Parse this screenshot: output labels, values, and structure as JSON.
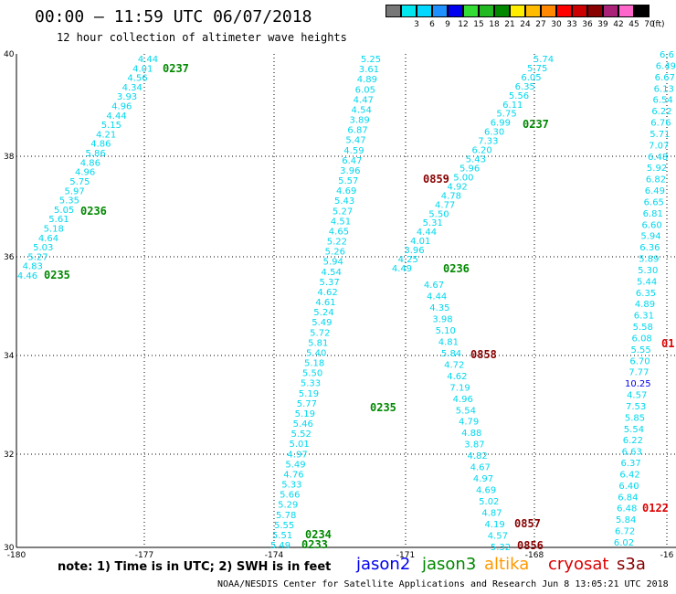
{
  "title": "00:00 — 11:59 UTC 06/07/2018",
  "subtitle": "12 hour collection of altimeter wave heights",
  "legend": {
    "unit": "(ft)",
    "entries": [
      {
        "label": "",
        "color": "#777777"
      },
      {
        "label": "3",
        "color": "#00e5ee"
      },
      {
        "label": "6",
        "color": "#00d8ff"
      },
      {
        "label": "9",
        "color": "#1e90ff"
      },
      {
        "label": "12",
        "color": "#0000ee"
      },
      {
        "label": "15",
        "color": "#33dd33"
      },
      {
        "label": "18",
        "color": "#22b822"
      },
      {
        "label": "21",
        "color": "#008800"
      },
      {
        "label": "24",
        "color": "#ffee00"
      },
      {
        "label": "27",
        "color": "#ffbb00"
      },
      {
        "label": "30",
        "color": "#ff8800"
      },
      {
        "label": "33",
        "color": "#ff0000"
      },
      {
        "label": "36",
        "color": "#cc0000"
      },
      {
        "label": "39",
        "color": "#880000"
      },
      {
        "label": "42",
        "color": "#aa2277"
      },
      {
        "label": "45",
        "color": "#ff66cc"
      },
      {
        "label": "70",
        "color": "#000000"
      }
    ]
  },
  "axes": {
    "lat_labels": [
      "40",
      "38",
      "36",
      "34",
      "32",
      "30"
    ],
    "lon_labels": [
      "-180",
      "-177",
      "-174",
      "-171",
      "-168",
      "-16"
    ]
  },
  "colors": {
    "value": "#00d8ee",
    "value_blue": "#0000ee",
    "jason3": "#008800",
    "jason2": "#0000ee",
    "altika": "#ff9900",
    "cryosat": "#dd0000",
    "s3a": "#880000"
  },
  "tracks": [
    {
      "id": "track-a",
      "values": [
        "4.44",
        "4.01",
        "4.56",
        "4.34",
        "3.93",
        "4.96",
        "4.44",
        "5.15",
        "4.21",
        "4.86",
        "5.86",
        "4.86",
        "4.96",
        "5.75",
        "5.97",
        "5.35",
        "5.05",
        "5.61",
        "5.18",
        "4.64",
        "5.03",
        "5.27",
        "4.83",
        "4.46"
      ]
    },
    {
      "id": "track-b",
      "values": [
        "5.25",
        "3.61",
        "4.89",
        "6.05",
        "4.47",
        "4.54",
        "3.89",
        "6.87",
        "5.47",
        "4.59",
        "6.47",
        "3.96",
        "5.57",
        "4.69",
        "5.43",
        "5.27",
        "4.51",
        "4.65",
        "5.22",
        "5.26",
        "5.94",
        "4.54",
        "5.37",
        "4.62",
        "4.61",
        "5.24",
        "5.49",
        "5.72",
        "5.81",
        "5.40",
        "5.18",
        "5.50",
        "5.33",
        "5.19",
        "5.77",
        "5.19",
        "5.46",
        "5.52",
        "5.01",
        "4.97",
        "5.49",
        "4.76",
        "5.33",
        "5.66",
        "5.29",
        "5.78",
        "5.55",
        "5.51",
        "5.49"
      ]
    },
    {
      "id": "track-c",
      "values": [
        "5.74",
        "5.75",
        "6.05",
        "6.35",
        "5.56",
        "6.11",
        "5.75",
        "6.99",
        "6.30",
        "7.33",
        "6.20",
        "5.43",
        "5.96",
        "5.00",
        "4.92",
        "4.78",
        "4.77",
        "5.50",
        "5.31",
        "4.44",
        "4.01",
        "3.96",
        "4.25",
        "4.49"
      ]
    },
    {
      "id": "track-d",
      "values": [
        "4.67",
        "4.44",
        "4.35",
        "3.98",
        "5.10",
        "4.81",
        "5.84",
        "4.72",
        "4.62",
        "7.19",
        "4.96",
        "5.54",
        "4.79",
        "4.88",
        "3.87",
        "4.82",
        "4.67",
        "4.97",
        "4.69",
        "5.02",
        "4.87",
        "4.19",
        "4.57",
        "5.32"
      ]
    },
    {
      "id": "track-e",
      "values": [
        "6.6",
        "6.49",
        "6.67",
        "6.13",
        "6.54",
        "6.22",
        "6.76",
        "5.71",
        "7.07",
        "6.48",
        "5.92",
        "6.82",
        "6.49",
        "6.65",
        "6.81",
        "6.60",
        "5.94",
        "6.36",
        "5.89",
        "5.30",
        "5.44",
        "6.35",
        "4.89",
        "6.31",
        "5.58",
        "6.08",
        "5.55",
        "6.70",
        "7.77",
        "10.25",
        "4.57",
        "7.53",
        "5.85",
        "5.54",
        "6.22",
        "6.63",
        "6.37",
        "6.42",
        "6.40",
        "6.84",
        "6.48",
        "5.84",
        "6.72",
        "6.02"
      ]
    }
  ],
  "time_labels": [
    {
      "text": "0237",
      "sat": "jason3"
    },
    {
      "text": "0237",
      "sat": "jason3"
    },
    {
      "text": "0236",
      "sat": "jason3"
    },
    {
      "text": "0235",
      "sat": "jason3"
    },
    {
      "text": "0859",
      "sat": "s3a"
    },
    {
      "text": "0236",
      "sat": "jason3"
    },
    {
      "text": "0858",
      "sat": "s3a"
    },
    {
      "text": "0235",
      "sat": "jason3"
    },
    {
      "text": "0234",
      "sat": "jason3"
    },
    {
      "text": "0233",
      "sat": "jason3"
    },
    {
      "text": "0857",
      "sat": "s3a"
    },
    {
      "text": "0856",
      "sat": "s3a"
    },
    {
      "text": "0122",
      "sat": "cryosat"
    },
    {
      "text": "01",
      "sat": "cryosat"
    }
  ],
  "footer": {
    "note": "note: 1) Time is in UTC; 2) SWH is in feet",
    "jason2": "jason2",
    "jason3": "jason3",
    "altika": "altika",
    "cryosat": "cryosat",
    "s3a": "s3a",
    "credit": "NOAA/NESDIS Center for Satellite Applications and Research   Jun  8 13:05:21 UTC 2018"
  }
}
